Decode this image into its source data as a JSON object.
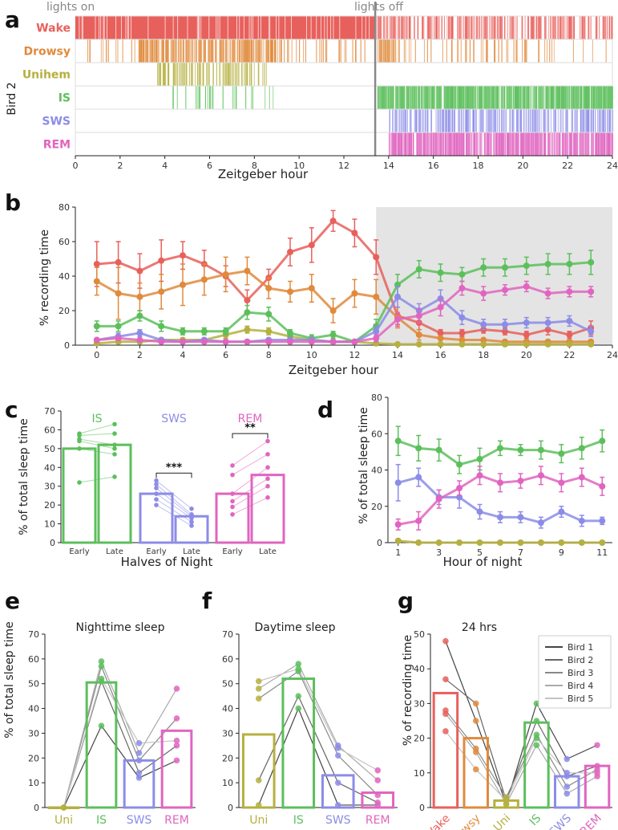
{
  "colors": {
    "wake": "#e8605c",
    "drowsy": "#e08a3c",
    "unihem": "#b5b040",
    "is": "#5cbf5c",
    "sws": "#8c8ce8",
    "rem": "#e065c0",
    "axis": "#333333",
    "shade": "#e4e4e4"
  },
  "panel_letters": {
    "a": "a",
    "b": "b",
    "c": "c",
    "d": "d",
    "e": "e",
    "f": "f",
    "g": "g"
  },
  "chart_data": [
    {
      "id": "a",
      "type": "heatmap",
      "title": "",
      "ylabel": "Bird 2",
      "xlabel": "Zeitgeber hour",
      "top_left_note": "lights on",
      "top_mid_note": "lights off",
      "lights_off_hour": 13.4,
      "xlim": [
        0,
        24
      ],
      "xticks": [
        0,
        2,
        4,
        6,
        8,
        10,
        12,
        14,
        16,
        18,
        20,
        22,
        24
      ],
      "rows": [
        "Wake",
        "Drowsy",
        "Unihem",
        "IS",
        "SWS",
        "REM"
      ],
      "row_ranges": {
        "Wake": [
          [
            0,
            13.4,
            0.95
          ],
          [
            13.4,
            24,
            0.35
          ]
        ],
        "Drowsy": [
          [
            2.8,
            9.2,
            0.45
          ],
          [
            0.4,
            13,
            0.12
          ],
          [
            13.5,
            14.3,
            0.5
          ],
          [
            14.3,
            24,
            0.12
          ]
        ],
        "Unihem": [
          [
            3.6,
            8.6,
            0.35
          ]
        ],
        "IS": [
          [
            4.2,
            9.0,
            0.12
          ],
          [
            13.5,
            24,
            0.8
          ]
        ],
        "SWS": [
          [
            14.0,
            24,
            0.45
          ]
        ],
        "REM": [
          [
            14.0,
            24,
            0.7
          ]
        ]
      }
    },
    {
      "id": "b",
      "type": "line",
      "xlabel": "Zeitgeber hour",
      "ylabel": "% recording time",
      "xlim": [
        -1,
        24
      ],
      "ylim": [
        0,
        80
      ],
      "xticks": [
        0,
        2,
        4,
        6,
        8,
        10,
        12,
        14,
        16,
        18,
        20,
        22,
        24
      ],
      "yticks": [
        0,
        20,
        40,
        60,
        80
      ],
      "shaded_from": 13,
      "x": [
        0,
        1,
        2,
        3,
        4,
        5,
        6,
        7,
        8,
        9,
        10,
        11,
        12,
        13,
        14,
        15,
        16,
        17,
        18,
        19,
        20,
        21,
        22,
        23
      ],
      "series": [
        {
          "name": "Wake",
          "values": [
            47,
            48,
            43,
            49,
            52,
            47,
            40,
            26,
            39,
            54,
            58,
            72,
            65,
            51,
            17,
            13,
            7,
            7,
            9,
            8,
            6,
            9,
            6,
            10
          ],
          "err": [
            13,
            12,
            10,
            12,
            8,
            8,
            6,
            6,
            5,
            8,
            10,
            6,
            8,
            10,
            5,
            4,
            2,
            2,
            2,
            2,
            2,
            3,
            2,
            4
          ]
        },
        {
          "name": "Drowsy",
          "values": [
            37,
            30,
            28,
            31,
            35,
            38,
            41,
            43,
            33,
            31,
            33,
            20,
            30,
            28,
            16,
            6,
            4,
            3,
            3,
            2,
            2,
            2,
            2,
            2
          ],
          "err": [
            8,
            15,
            8,
            10,
            12,
            9,
            10,
            8,
            6,
            6,
            8,
            7,
            8,
            10,
            6,
            3,
            1,
            1,
            1,
            1,
            1,
            1,
            1,
            1
          ]
        },
        {
          "name": "Unihem",
          "values": [
            1,
            2,
            2,
            3,
            3,
            3,
            6,
            9,
            8,
            5,
            3,
            2,
            2,
            1,
            0.5,
            0.5,
            0.5,
            0.5,
            0.5,
            0.5,
            0.5,
            0.5,
            0.5,
            0.5
          ],
          "err": [
            1,
            1,
            1,
            1,
            1,
            1,
            2,
            2,
            2,
            2,
            1,
            1,
            1,
            0.5,
            0.3,
            0.3,
            0.3,
            0.3,
            0.3,
            0.3,
            0.3,
            0.3,
            0.3,
            0.3
          ]
        },
        {
          "name": "IS",
          "values": [
            11,
            11,
            17,
            11,
            8,
            8,
            8,
            19,
            18,
            7,
            4,
            6,
            2,
            11,
            35,
            44,
            42,
            41,
            45,
            45,
            46,
            47,
            47,
            48
          ],
          "err": [
            3,
            3,
            3,
            3,
            2,
            2,
            2,
            4,
            4,
            2,
            2,
            2,
            1,
            4,
            6,
            5,
            5,
            4,
            5,
            5,
            5,
            6,
            6,
            7
          ]
        },
        {
          "name": "SWS",
          "values": [
            3,
            5,
            7,
            3,
            2,
            3,
            2,
            2,
            3,
            3,
            3,
            2,
            2,
            8,
            28,
            20,
            27,
            16,
            12,
            12,
            13,
            13,
            14,
            8
          ],
          "err": [
            1,
            2,
            2,
            1,
            1,
            1,
            1,
            1,
            1,
            1,
            1,
            1,
            1,
            3,
            6,
            4,
            5,
            4,
            3,
            3,
            3,
            3,
            3,
            3
          ]
        },
        {
          "name": "REM",
          "values": [
            3,
            4,
            3,
            2,
            2,
            2,
            2,
            2,
            2,
            2,
            2,
            2,
            2,
            4,
            15,
            17,
            22,
            33,
            30,
            32,
            34,
            30,
            31,
            31
          ],
          "err": [
            1,
            1,
            1,
            1,
            1,
            1,
            1,
            1,
            1,
            1,
            1,
            1,
            1,
            2,
            4,
            4,
            5,
            4,
            4,
            3,
            3,
            3,
            3,
            3
          ]
        }
      ]
    },
    {
      "id": "c",
      "type": "bar",
      "xlabel": "Halves of Night",
      "ylabel": "% of total sleep time",
      "ylim": [
        0,
        70
      ],
      "yticks": [
        0,
        10,
        20,
        30,
        40,
        50,
        60,
        70
      ],
      "groups": [
        {
          "name": "IS",
          "color_key": "is",
          "early": 50,
          "late": 52,
          "early_pts": [
            32,
            50,
            54,
            55,
            57,
            58
          ],
          "late_pts": [
            35,
            47,
            50,
            52,
            58,
            63
          ],
          "sig": ""
        },
        {
          "name": "SWS",
          "color_key": "sws",
          "early": 26,
          "late": 14,
          "early_pts": [
            20,
            23,
            26,
            29,
            31,
            33
          ],
          "late_pts": [
            9,
            11,
            13,
            14,
            15,
            18
          ],
          "sig": "***"
        },
        {
          "name": "REM",
          "color_key": "rem",
          "early": 26,
          "late": 36,
          "early_pts": [
            15,
            19,
            22,
            26,
            36,
            41
          ],
          "late_pts": [
            24,
            30,
            34,
            40,
            47,
            54
          ],
          "sig": "**"
        }
      ],
      "categories": [
        "Early",
        "Late"
      ]
    },
    {
      "id": "d",
      "type": "line",
      "xlabel": "Hour of night",
      "ylabel": "% of total sleep time",
      "xlim": [
        0.5,
        11.5
      ],
      "ylim": [
        0,
        80
      ],
      "xticks": [
        1,
        3,
        5,
        7,
        9,
        11
      ],
      "yticks": [
        0,
        20,
        40,
        60,
        80
      ],
      "x": [
        1,
        2,
        3,
        4,
        5,
        6,
        7,
        8,
        9,
        10,
        11
      ],
      "series": [
        {
          "name": "IS",
          "values": [
            56,
            52,
            51,
            43,
            46,
            52,
            51,
            51,
            49,
            52,
            56
          ],
          "err": [
            8,
            7,
            6,
            5,
            6,
            4,
            3,
            5,
            5,
            6,
            6
          ]
        },
        {
          "name": "SWS",
          "values": [
            33,
            36,
            25,
            25,
            17,
            14,
            14,
            11,
            17,
            12,
            12
          ],
          "err": [
            10,
            5,
            4,
            6,
            4,
            3,
            3,
            3,
            3,
            3,
            2
          ]
        },
        {
          "name": "REM",
          "values": [
            10,
            12,
            24,
            30,
            37,
            33,
            34,
            37,
            33,
            36,
            31
          ],
          "err": [
            3,
            5,
            5,
            4,
            5,
            5,
            4,
            5,
            5,
            5,
            5
          ]
        },
        {
          "name": "Unihem",
          "values": [
            1,
            0,
            0,
            0,
            0,
            0,
            0,
            0,
            0,
            0,
            0
          ],
          "err": [
            1,
            0.5,
            0.5,
            0.5,
            0.5,
            0.5,
            0.5,
            0.5,
            0.5,
            0.5,
            0.5
          ]
        }
      ]
    },
    {
      "id": "e",
      "type": "bar",
      "title": "Nighttime sleep",
      "ylabel": "% of total sleep time",
      "ylim": [
        0,
        70
      ],
      "yticks": [
        0,
        10,
        20,
        30,
        40,
        50,
        60,
        70
      ],
      "categories": [
        "Uni",
        "IS",
        "SWS",
        "REM"
      ],
      "color_keys": [
        "unihem",
        "is",
        "sws",
        "rem"
      ],
      "values": [
        0,
        50.5,
        19,
        31
      ],
      "points": [
        [
          0,
          0,
          0,
          0,
          0
        ],
        [
          33,
          51,
          57,
          59,
          52
        ],
        [
          12,
          14,
          19,
          22,
          26
        ],
        [
          19,
          25,
          36,
          48,
          27
        ]
      ]
    },
    {
      "id": "f",
      "type": "bar",
      "title": "Daytime sleep",
      "ylabel": "",
      "ylim": [
        0,
        70
      ],
      "yticks": [
        0,
        10,
        20,
        30,
        40,
        50,
        60,
        70
      ],
      "categories": [
        "Uni",
        "IS",
        "SWS",
        "REM"
      ],
      "color_keys": [
        "unihem",
        "is",
        "sws",
        "rem"
      ],
      "values": [
        29.5,
        52,
        13,
        6
      ],
      "points": [
        [
          1,
          11,
          44,
          48,
          51
        ],
        [
          40,
          45,
          55,
          58,
          56
        ],
        [
          1,
          10,
          21,
          25,
          24
        ],
        [
          1,
          2,
          5,
          11,
          15
        ]
      ]
    },
    {
      "id": "g",
      "type": "bar",
      "title": "24 hrs",
      "ylabel": "% of recording time",
      "ylim": [
        0,
        50
      ],
      "yticks": [
        0,
        10,
        20,
        30,
        40,
        50
      ],
      "categories": [
        "Wake",
        "Drowsy",
        "Uni",
        "IS",
        "SWS",
        "REM"
      ],
      "color_keys": [
        "wake",
        "drowsy",
        "unihem",
        "is",
        "sws",
        "rem"
      ],
      "values": [
        33,
        20,
        2,
        24.5,
        9,
        12
      ],
      "points": [
        [
          48,
          37,
          28,
          27,
          22
        ],
        [
          25,
          30,
          17,
          16,
          11
        ],
        [
          1,
          2,
          3,
          1,
          2
        ],
        [
          30,
          25,
          21,
          18,
          20
        ],
        [
          14,
          9,
          6,
          4,
          10
        ],
        [
          18,
          12,
          11,
          9,
          10
        ]
      ],
      "legend": [
        "Bird 1",
        "Bird 2",
        "Bird 3",
        "Bird 4",
        "Bird 5"
      ]
    }
  ]
}
